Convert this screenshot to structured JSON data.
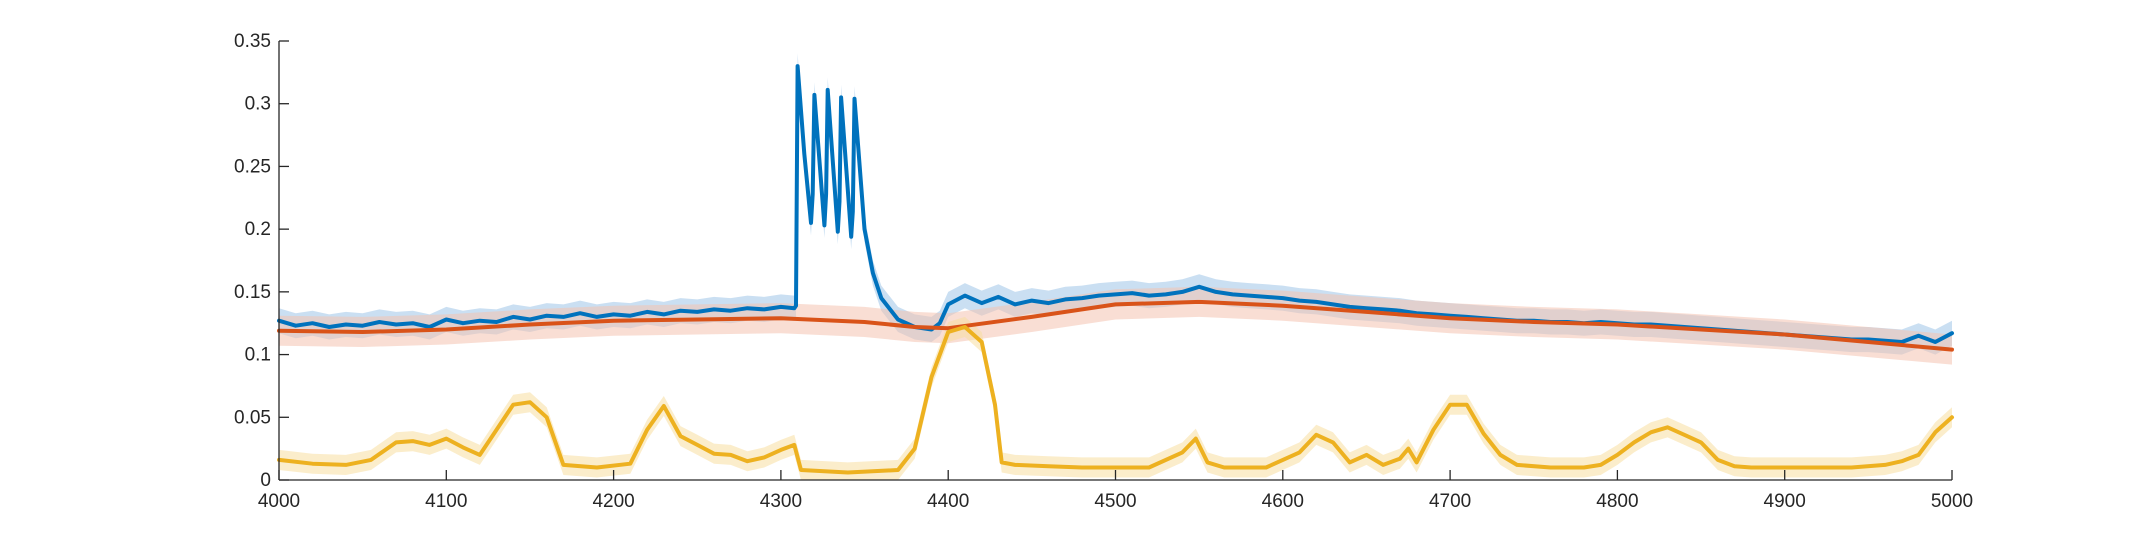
{
  "chart_data": {
    "type": "line",
    "title": "",
    "xlabel": "",
    "ylabel": "",
    "xlim": [
      4000,
      5000
    ],
    "ylim": [
      0,
      0.35
    ],
    "x_ticks": [
      4000,
      4100,
      4200,
      4300,
      4400,
      4500,
      4600,
      4700,
      4800,
      4900,
      5000
    ],
    "x_tick_labels": [
      "4000",
      "4100",
      "4200",
      "4300",
      "4400",
      "4500",
      "4600",
      "4700",
      "4800",
      "4900",
      "5000"
    ],
    "y_ticks": [
      0,
      0.05,
      0.1,
      0.15,
      0.2,
      0.25,
      0.3,
      0.35
    ],
    "y_tick_labels": [
      "0",
      "0.05",
      "0.1",
      "0.15",
      "0.2",
      "0.25",
      "0.3",
      "0.35"
    ],
    "grid": false,
    "legend": "none",
    "series": [
      {
        "color": "#0072BD",
        "band_color": "#9FC5E8",
        "band_halfwidth": 0.01,
        "x": [
          4000,
          4010,
          4020,
          4030,
          4040,
          4050,
          4060,
          4070,
          4080,
          4090,
          4100,
          4110,
          4120,
          4130,
          4140,
          4150,
          4160,
          4170,
          4180,
          4190,
          4200,
          4210,
          4220,
          4230,
          4240,
          4250,
          4260,
          4270,
          4280,
          4290,
          4300,
          4308,
          4309,
          4310,
          4314,
          4318,
          4319,
          4320,
          4326,
          4327,
          4328,
          4334,
          4335,
          4336,
          4342,
          4343,
          4344,
          4350,
          4355,
          4360,
          4370,
          4380,
          4390,
          4395,
          4400,
          4410,
          4420,
          4430,
          4440,
          4450,
          4460,
          4470,
          4480,
          4490,
          4500,
          4510,
          4520,
          4530,
          4540,
          4550,
          4560,
          4570,
          4580,
          4590,
          4600,
          4610,
          4620,
          4630,
          4640,
          4650,
          4660,
          4670,
          4680,
          4690,
          4700,
          4710,
          4720,
          4730,
          4740,
          4750,
          4760,
          4770,
          4780,
          4790,
          4800,
          4810,
          4820,
          4830,
          4840,
          4850,
          4860,
          4870,
          4880,
          4890,
          4900,
          4910,
          4920,
          4930,
          4940,
          4950,
          4960,
          4970,
          4980,
          4990,
          5000
        ],
        "y": [
          0.127,
          0.123,
          0.125,
          0.122,
          0.124,
          0.123,
          0.126,
          0.124,
          0.125,
          0.122,
          0.128,
          0.125,
          0.127,
          0.126,
          0.13,
          0.128,
          0.131,
          0.13,
          0.133,
          0.13,
          0.132,
          0.131,
          0.134,
          0.132,
          0.135,
          0.134,
          0.136,
          0.135,
          0.137,
          0.136,
          0.138,
          0.137,
          0.139,
          0.33,
          0.26,
          0.205,
          0.228,
          0.307,
          0.203,
          0.228,
          0.311,
          0.198,
          0.222,
          0.305,
          0.194,
          0.214,
          0.304,
          0.2,
          0.165,
          0.145,
          0.128,
          0.122,
          0.12,
          0.125,
          0.14,
          0.147,
          0.141,
          0.146,
          0.14,
          0.143,
          0.141,
          0.144,
          0.145,
          0.147,
          0.148,
          0.149,
          0.147,
          0.148,
          0.15,
          0.154,
          0.15,
          0.148,
          0.147,
          0.146,
          0.145,
          0.143,
          0.142,
          0.14,
          0.138,
          0.137,
          0.136,
          0.135,
          0.133,
          0.132,
          0.131,
          0.13,
          0.129,
          0.128,
          0.127,
          0.127,
          0.126,
          0.126,
          0.125,
          0.126,
          0.125,
          0.124,
          0.124,
          0.123,
          0.122,
          0.121,
          0.12,
          0.119,
          0.118,
          0.117,
          0.116,
          0.115,
          0.114,
          0.113,
          0.112,
          0.112,
          0.111,
          0.11,
          0.115,
          0.11,
          0.117
        ]
      },
      {
        "color": "#D95319",
        "band_color": "#F4C2B0",
        "band_halfwidth": 0.012,
        "x": [
          4000,
          4050,
          4100,
          4150,
          4200,
          4250,
          4300,
          4350,
          4380,
          4400,
          4450,
          4500,
          4550,
          4600,
          4650,
          4700,
          4750,
          4800,
          4850,
          4900,
          4950,
          5000
        ],
        "y": [
          0.119,
          0.118,
          0.12,
          0.124,
          0.127,
          0.128,
          0.129,
          0.126,
          0.122,
          0.121,
          0.13,
          0.14,
          0.142,
          0.139,
          0.134,
          0.129,
          0.126,
          0.124,
          0.12,
          0.116,
          0.11,
          0.104
        ]
      },
      {
        "color": "#EDB120",
        "band_color": "#F8DFA0",
        "band_halfwidth": 0.008,
        "x": [
          4000,
          4020,
          4040,
          4055,
          4070,
          4080,
          4090,
          4100,
          4110,
          4120,
          4130,
          4140,
          4150,
          4160,
          4170,
          4190,
          4210,
          4220,
          4230,
          4240,
          4250,
          4260,
          4270,
          4280,
          4290,
          4300,
          4308,
          4312,
          4340,
          4370,
          4380,
          4390,
          4400,
          4410,
          4420,
          4428,
          4432,
          4440,
          4460,
          4480,
          4500,
          4520,
          4540,
          4548,
          4555,
          4565,
          4590,
          4610,
          4620,
          4630,
          4640,
          4650,
          4660,
          4670,
          4675,
          4680,
          4690,
          4700,
          4710,
          4720,
          4730,
          4740,
          4760,
          4780,
          4790,
          4800,
          4810,
          4820,
          4830,
          4840,
          4850,
          4860,
          4870,
          4880,
          4900,
          4920,
          4940,
          4960,
          4970,
          4980,
          4990,
          5000
        ],
        "y": [
          0.016,
          0.013,
          0.012,
          0.016,
          0.03,
          0.031,
          0.028,
          0.033,
          0.026,
          0.02,
          0.04,
          0.06,
          0.062,
          0.05,
          0.012,
          0.01,
          0.013,
          0.04,
          0.059,
          0.035,
          0.028,
          0.021,
          0.02,
          0.015,
          0.018,
          0.024,
          0.028,
          0.008,
          0.006,
          0.008,
          0.025,
          0.082,
          0.118,
          0.122,
          0.11,
          0.06,
          0.014,
          0.012,
          0.011,
          0.01,
          0.01,
          0.01,
          0.022,
          0.033,
          0.014,
          0.01,
          0.01,
          0.022,
          0.036,
          0.03,
          0.014,
          0.02,
          0.012,
          0.017,
          0.025,
          0.014,
          0.04,
          0.06,
          0.06,
          0.037,
          0.02,
          0.012,
          0.01,
          0.01,
          0.012,
          0.02,
          0.03,
          0.038,
          0.042,
          0.036,
          0.03,
          0.016,
          0.011,
          0.01,
          0.01,
          0.01,
          0.01,
          0.012,
          0.015,
          0.02,
          0.038,
          0.05
        ]
      }
    ]
  }
}
